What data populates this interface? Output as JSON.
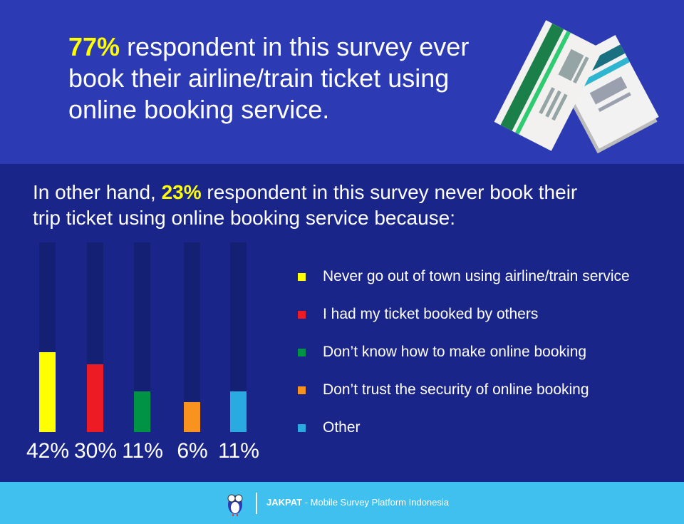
{
  "header": {
    "percent": "77%",
    "text": " respondent in this survey ever book their airline/train ticket using online booking service.",
    "icon": "tickets-illustration"
  },
  "subheading": {
    "prefix": "In other hand, ",
    "percent": "23%",
    "suffix": " respondent in this survey never book their trip ticket using online booking service because:"
  },
  "chart_data": {
    "type": "bar",
    "categories": [
      "Never go out of town using airline/train service",
      "I had my ticket booked by others",
      "Don’t know how to make online booking",
      "Don’t trust the security of online booking",
      "Other"
    ],
    "values": [
      42,
      30,
      11,
      6,
      11
    ],
    "labels": [
      "42%",
      "30%",
      "11%",
      "6%",
      "11%"
    ],
    "colors": [
      "#ffff00",
      "#ed1c24",
      "#009245",
      "#f7931e",
      "#29abe2"
    ],
    "ylim": [
      0,
      100
    ],
    "legend": "right",
    "grid": false
  },
  "footer": {
    "brand": "JAKPAT",
    "tagline": " - Mobile Survey Platform Indonesia",
    "icon": "owl-mascot-logo"
  }
}
